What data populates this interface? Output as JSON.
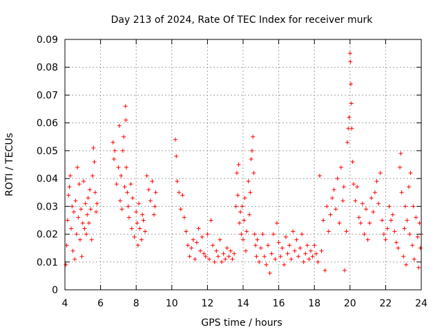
{
  "chart_data": {
    "type": "scatter",
    "title": "Day 213 of 2024, Rate Of TEC Index for receiver murk",
    "xlabel": "GPS time / hours",
    "ylabel": "ROTI / TECUs",
    "xlim": [
      4,
      24
    ],
    "ylim": [
      0,
      0.09
    ],
    "x_ticks": [
      "4",
      "6",
      "8",
      "10",
      "12",
      "14",
      "16",
      "18",
      "20",
      "22",
      "24"
    ],
    "y_ticks": [
      "0",
      "0.01",
      "0.02",
      "0.03",
      "0.04",
      "0.05",
      "0.06",
      "0.07",
      "0.08",
      "0.09"
    ],
    "grid": true,
    "marker": "+",
    "color": "#ff0000",
    "points": [
      [
        4.05,
        0.009
      ],
      [
        4.1,
        0.016
      ],
      [
        4.15,
        0.025
      ],
      [
        4.2,
        0.034
      ],
      [
        4.25,
        0.037
      ],
      [
        4.3,
        0.041
      ],
      [
        4.35,
        0.022
      ],
      [
        4.4,
        0.03
      ],
      [
        4.45,
        0.014
      ],
      [
        4.5,
        0.028
      ],
      [
        4.55,
        0.011
      ],
      [
        4.6,
        0.032
      ],
      [
        4.65,
        0.02
      ],
      [
        4.7,
        0.044
      ],
      [
        4.75,
        0.026
      ],
      [
        4.8,
        0.038
      ],
      [
        4.85,
        0.018
      ],
      [
        4.9,
        0.029
      ],
      [
        4.95,
        0.012
      ],
      [
        5.0,
        0.024
      ],
      [
        5.05,
        0.039
      ],
      [
        5.1,
        0.022
      ],
      [
        5.15,
        0.031
      ],
      [
        5.2,
        0.02
      ],
      [
        5.25,
        0.027
      ],
      [
        5.3,
        0.033
      ],
      [
        5.35,
        0.024
      ],
      [
        5.4,
        0.036
      ],
      [
        5.45,
        0.029
      ],
      [
        5.5,
        0.018
      ],
      [
        5.55,
        0.041
      ],
      [
        5.6,
        0.051
      ],
      [
        5.65,
        0.046
      ],
      [
        5.7,
        0.035
      ],
      [
        5.75,
        0.028
      ],
      [
        5.8,
        0.031
      ],
      [
        6.7,
        0.053
      ],
      [
        6.75,
        0.047
      ],
      [
        6.8,
        0.05
      ],
      [
        6.9,
        0.038
      ],
      [
        7.0,
        0.044
      ],
      [
        7.05,
        0.059
      ],
      [
        7.1,
        0.032
      ],
      [
        7.15,
        0.041
      ],
      [
        7.2,
        0.029
      ],
      [
        7.25,
        0.05
      ],
      [
        7.3,
        0.055
      ],
      [
        7.35,
        0.037
      ],
      [
        7.4,
        0.066
      ],
      [
        7.42,
        0.061
      ],
      [
        7.45,
        0.044
      ],
      [
        7.5,
        0.035
      ],
      [
        7.55,
        0.03
      ],
      [
        7.6,
        0.026
      ],
      [
        7.7,
        0.038
      ],
      [
        7.75,
        0.022
      ],
      [
        7.8,
        0.033
      ],
      [
        7.9,
        0.019
      ],
      [
        8.0,
        0.028
      ],
      [
        8.05,
        0.024
      ],
      [
        8.1,
        0.016
      ],
      [
        8.15,
        0.031
      ],
      [
        8.2,
        0.022
      ],
      [
        8.3,
        0.018
      ],
      [
        8.35,
        0.027
      ],
      [
        8.4,
        0.025
      ],
      [
        8.5,
        0.021
      ],
      [
        8.6,
        0.041
      ],
      [
        8.7,
        0.036
      ],
      [
        8.8,
        0.032
      ],
      [
        8.9,
        0.039
      ],
      [
        9.0,
        0.027
      ],
      [
        9.05,
        0.03
      ],
      [
        9.1,
        0.035
      ],
      [
        10.2,
        0.054
      ],
      [
        10.25,
        0.048
      ],
      [
        10.3,
        0.039
      ],
      [
        10.4,
        0.035
      ],
      [
        10.5,
        0.029
      ],
      [
        10.6,
        0.034
      ],
      [
        10.7,
        0.026
      ],
      [
        10.8,
        0.021
      ],
      [
        10.9,
        0.016
      ],
      [
        11.0,
        0.012
      ],
      [
        11.1,
        0.015
      ],
      [
        11.2,
        0.018
      ],
      [
        11.3,
        0.011
      ],
      [
        11.4,
        0.017
      ],
      [
        11.5,
        0.022
      ],
      [
        11.6,
        0.014
      ],
      [
        11.7,
        0.019
      ],
      [
        11.8,
        0.013
      ],
      [
        11.9,
        0.012
      ],
      [
        12.0,
        0.02
      ],
      [
        12.1,
        0.011
      ],
      [
        12.2,
        0.025
      ],
      [
        12.3,
        0.016
      ],
      [
        12.4,
        0.01
      ],
      [
        12.5,
        0.014
      ],
      [
        12.6,
        0.012
      ],
      [
        12.7,
        0.018
      ],
      [
        12.8,
        0.01
      ],
      [
        12.9,
        0.013
      ],
      [
        13.0,
        0.011
      ],
      [
        13.1,
        0.015
      ],
      [
        13.2,
        0.012
      ],
      [
        13.3,
        0.014
      ],
      [
        13.4,
        0.011
      ],
      [
        13.5,
        0.013
      ],
      [
        13.6,
        0.03
      ],
      [
        13.65,
        0.042
      ],
      [
        13.7,
        0.034
      ],
      [
        13.75,
        0.045
      ],
      [
        13.8,
        0.024
      ],
      [
        13.85,
        0.028
      ],
      [
        13.9,
        0.02
      ],
      [
        13.95,
        0.03
      ],
      [
        14.0,
        0.018
      ],
      [
        14.05,
        0.025
      ],
      [
        14.1,
        0.033
      ],
      [
        14.15,
        0.014
      ],
      [
        14.2,
        0.021
      ],
      [
        14.3,
        0.039
      ],
      [
        14.35,
        0.027
      ],
      [
        14.4,
        0.035
      ],
      [
        14.45,
        0.047
      ],
      [
        14.5,
        0.05
      ],
      [
        14.55,
        0.055
      ],
      [
        14.6,
        0.042
      ],
      [
        14.65,
        0.02
      ],
      [
        14.7,
        0.016
      ],
      [
        14.75,
        0.012
      ],
      [
        14.8,
        0.018
      ],
      [
        14.9,
        0.01
      ],
      [
        15.0,
        0.015
      ],
      [
        15.1,
        0.02
      ],
      [
        15.2,
        0.012
      ],
      [
        15.3,
        0.009
      ],
      [
        15.4,
        0.016
      ],
      [
        15.5,
        0.006
      ],
      [
        15.6,
        0.013
      ],
      [
        15.7,
        0.02
      ],
      [
        15.8,
        0.011
      ],
      [
        15.9,
        0.024
      ],
      [
        16.0,
        0.017
      ],
      [
        16.1,
        0.012
      ],
      [
        16.2,
        0.015
      ],
      [
        16.3,
        0.009
      ],
      [
        16.4,
        0.019
      ],
      [
        16.5,
        0.013
      ],
      [
        16.6,
        0.016
      ],
      [
        16.7,
        0.011
      ],
      [
        16.8,
        0.021
      ],
      [
        16.9,
        0.014
      ],
      [
        17.0,
        0.018
      ],
      [
        17.1,
        0.012
      ],
      [
        17.2,
        0.015
      ],
      [
        17.3,
        0.02
      ],
      [
        17.4,
        0.01
      ],
      [
        17.5,
        0.013
      ],
      [
        17.6,
        0.016
      ],
      [
        17.7,
        0.011
      ],
      [
        17.8,
        0.014
      ],
      [
        17.9,
        0.012
      ],
      [
        18.0,
        0.016
      ],
      [
        18.1,
        0.013
      ],
      [
        18.2,
        0.01
      ],
      [
        18.3,
        0.041
      ],
      [
        18.4,
        0.014
      ],
      [
        18.5,
        0.025
      ],
      [
        18.6,
        0.007
      ],
      [
        18.7,
        0.03
      ],
      [
        18.8,
        0.021
      ],
      [
        18.9,
        0.027
      ],
      [
        19.0,
        0.033
      ],
      [
        19.1,
        0.036
      ],
      [
        19.2,
        0.029
      ],
      [
        19.3,
        0.04
      ],
      [
        19.4,
        0.024
      ],
      [
        19.5,
        0.044
      ],
      [
        19.6,
        0.032
      ],
      [
        19.65,
        0.037
      ],
      [
        19.7,
        0.007
      ],
      [
        19.8,
        0.021
      ],
      [
        19.85,
        0.053
      ],
      [
        19.9,
        0.058
      ],
      [
        19.95,
        0.062
      ],
      [
        20.0,
        0.085
      ],
      [
        20.02,
        0.082
      ],
      [
        20.05,
        0.074
      ],
      [
        20.08,
        0.067
      ],
      [
        20.1,
        0.058
      ],
      [
        20.15,
        0.046
      ],
      [
        20.2,
        0.038
      ],
      [
        20.3,
        0.032
      ],
      [
        20.4,
        0.037
      ],
      [
        20.5,
        0.026
      ],
      [
        20.6,
        0.024
      ],
      [
        20.7,
        0.031
      ],
      [
        20.8,
        0.02
      ],
      [
        20.9,
        0.029
      ],
      [
        21.0,
        0.018
      ],
      [
        21.1,
        0.024
      ],
      [
        21.2,
        0.033
      ],
      [
        21.3,
        0.028
      ],
      [
        21.4,
        0.035
      ],
      [
        21.5,
        0.039
      ],
      [
        21.6,
        0.031
      ],
      [
        21.7,
        0.042
      ],
      [
        21.8,
        0.025
      ],
      [
        21.9,
        0.02
      ],
      [
        22.0,
        0.018
      ],
      [
        22.1,
        0.022
      ],
      [
        22.2,
        0.03
      ],
      [
        22.3,
        0.025
      ],
      [
        22.4,
        0.027
      ],
      [
        22.5,
        0.021
      ],
      [
        22.6,
        0.017
      ],
      [
        22.7,
        0.015
      ],
      [
        22.8,
        0.044
      ],
      [
        22.85,
        0.049
      ],
      [
        22.9,
        0.035
      ],
      [
        23.0,
        0.012
      ],
      [
        23.05,
        0.022
      ],
      [
        23.1,
        0.03
      ],
      [
        23.15,
        0.009
      ],
      [
        23.2,
        0.025
      ],
      [
        23.3,
        0.037
      ],
      [
        23.35,
        0.02
      ],
      [
        23.4,
        0.042
      ],
      [
        23.5,
        0.016
      ],
      [
        23.55,
        0.03
      ],
      [
        23.6,
        0.011
      ],
      [
        23.7,
        0.026
      ],
      [
        23.8,
        0.019
      ],
      [
        23.85,
        0.008
      ],
      [
        23.9,
        0.024
      ],
      [
        23.95,
        0.015
      ],
      [
        24.0,
        0.02
      ]
    ]
  }
}
